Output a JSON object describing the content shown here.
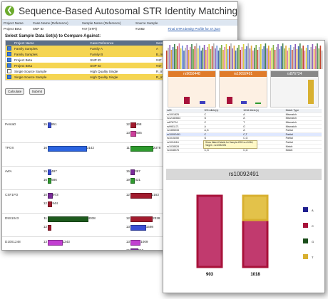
{
  "page_title": "Sequence-Based Autosomal STR Identity Matching",
  "top_table": {
    "headers": [
      "Project Name",
      "Case Name (Reference)",
      "Sample Name (Reference)",
      "Source Sample"
    ],
    "row": [
      "Project Beta",
      "SNP ID",
      "#47 (STR)",
      "#1082",
      "Final STR Identity Profile for 47.json"
    ]
  },
  "select_label": "Select Sample Data Set(s) to Compare Against:",
  "grid": {
    "headers": [
      "Project Name",
      "Case Reference",
      "Sample Name",
      "Source"
    ],
    "rows": [
      {
        "c1": "Family Samples",
        "c2": "Family A",
        "c3": "A",
        "c4": "",
        "yellow": true,
        "checked": true
      },
      {
        "c1": "Family Samples",
        "c2": "Family B",
        "c3": "B_mix",
        "c4": "",
        "yellow": true,
        "checked": true
      },
      {
        "c1": "Project Beta",
        "c2": "SNP ID",
        "c3": "#47 (STR)",
        "c4": "",
        "yellow": false,
        "checked": true
      },
      {
        "c1": "Project Beta",
        "c2": "SNP ID",
        "c3": "#47 (STR)",
        "c4": "",
        "yellow": true,
        "checked": true
      },
      {
        "c1": "Single Source Sample",
        "c2": "High Quality Single",
        "c3": "R_m_02",
        "c4": "",
        "yellow": false,
        "checked": false
      },
      {
        "c1": "Single Source Sample",
        "c2": "High Quality Single",
        "c3": "R_m_03",
        "c4": "",
        "yellow": true,
        "checked": true
      }
    ]
  },
  "buttons": {
    "calculate": "Calculate",
    "submit": "Submit"
  },
  "loci": [
    {
      "name": "PentaD",
      "left": [
        {
          "allele": "15",
          "count": "851",
          "color": "#3a4fd6",
          "frac": 0.03
        }
      ],
      "right": [
        {
          "allele": "12",
          "count": "468",
          "color": "#a21b2e",
          "frac": 0.17
        },
        {
          "allele": "13",
          "count": "505",
          "color": "#cc3f9b",
          "frac": 0.18
        }
      ]
    },
    {
      "name": "TPOX",
      "left": [
        {
          "allele": "16",
          "count": "3142",
          "color": "#2c64e0",
          "frac": 0.85
        }
      ],
      "right": [
        {
          "allele": "11",
          "count": "2378",
          "color": "#2e9a2e",
          "frac": 0.88
        }
      ]
    },
    {
      "name": "vWA",
      "left": [
        {
          "allele": "15",
          "count": "487",
          "color": "#3a4fd6",
          "frac": 0.05
        },
        {
          "allele": "16",
          "count": "586",
          "color": "#2e9a2e",
          "frac": 0.05
        }
      ],
      "right": [
        {
          "allele": "15",
          "count": "397",
          "color": "#7a2c9a",
          "frac": 0.12
        },
        {
          "allele": "19",
          "count": "421",
          "color": "#2e9a2e",
          "frac": 0.13
        }
      ]
    },
    {
      "name": "CSF1PO",
      "left": [
        {
          "allele": "10",
          "count": "973",
          "color": "#7a2c9a",
          "frac": 0.08
        },
        {
          "allele": "12",
          "count": "844",
          "color": "#a21b2e",
          "frac": 0.07
        }
      ],
      "right": [
        {
          "allele": "12",
          "count": "2163",
          "color": "#a21b2e",
          "frac": 0.81
        }
      ]
    },
    {
      "name": "D5S1043",
      "left": [
        {
          "allele": "11",
          "count": "4038",
          "color": "#1d5a1d",
          "frac": 0.88
        },
        {
          "allele": "12",
          "count": "",
          "color": "#a21b2e",
          "frac": 0.0
        }
      ],
      "right": [
        {
          "allele": "12",
          "count": "2328",
          "color": "#a21b2e",
          "frac": 0.86
        },
        {
          "allele": "13",
          "count": "1598",
          "color": "#3a4fd6",
          "frac": 0.58
        }
      ]
    },
    {
      "name": "D10S1248",
      "left": [
        {
          "allele": "13",
          "count": "1243",
          "color": "#c23fd1",
          "frac": 0.3
        }
      ],
      "right": [
        {
          "allele": "13",
          "count": "1009",
          "color": "#c23fd1",
          "frac": 0.36
        },
        {
          "allele": "15",
          "count": "656",
          "color": "#7a2c9a",
          "frac": 0.25
        }
      ]
    }
  ],
  "panels": [
    {
      "name": "rs9650448",
      "color": "#e07b2a"
    },
    {
      "name": "rs10092491",
      "color": "#e07b2a"
    },
    {
      "name": "rs876724",
      "color": "#888888"
    }
  ],
  "match_table": {
    "headers": [
      "rsID",
      "903 Allele(s)",
      "1018 Allele(s)",
      "Match Type"
    ],
    "rows": [
      [
        "rs1001825",
        "C",
        "A",
        "Mismatch"
      ],
      [
        "rs12182663",
        "G",
        "A",
        "Mismatch"
      ],
      [
        "rs876724",
        "C",
        "T",
        "Mismatch"
      ],
      [
        "rs9951171",
        "A",
        "G",
        "Mismatch"
      ],
      [
        "rs1355033",
        "A,G",
        "A",
        "Partial"
      ],
      [
        "rs10092491",
        "C",
        "C,T",
        "Partial"
      ],
      [
        "rs1015250",
        "G",
        "C,G",
        "Partial"
      ],
      [
        "rs1024116",
        "C,T",
        "T",
        "Partial"
      ],
      [
        "rs1028528",
        "A,G",
        "A,G",
        "Match"
      ],
      [
        "rs1048076",
        "C,G",
        "C,G",
        "Match"
      ]
    ],
    "tooltip": "Show Match Details for Sample #903 vs #1018, Target = rs10092491"
  },
  "detail_chart": {
    "title": "rs10092491",
    "samples": [
      "903",
      "1018"
    ],
    "legend": [
      {
        "label": "A",
        "color": "#1f1f8f"
      },
      {
        "label": "C",
        "color": "#a8123a"
      },
      {
        "label": "G",
        "color": "#1a4d1a"
      },
      {
        "label": "T",
        "color": "#d8b030"
      }
    ],
    "series": [
      {
        "sample": "903",
        "C": 1.0,
        "T": 0.0
      },
      {
        "sample": "1018",
        "C": 0.66,
        "T": 0.34
      }
    ]
  }
}
